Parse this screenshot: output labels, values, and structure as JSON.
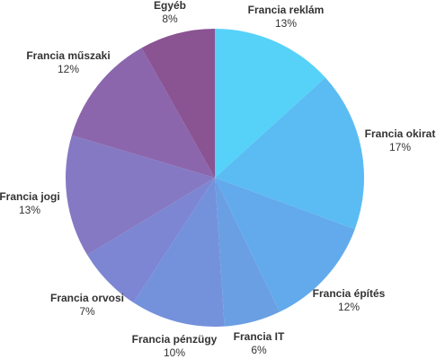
{
  "chart_data": {
    "type": "pie",
    "categories": [
      "Francia reklám",
      "Francia okirat",
      "Francia építés",
      "Francia IT",
      "Francia pénzügy",
      "Francia orvosi",
      "Francia jogi",
      "Francia műszaki",
      "Egyéb"
    ],
    "values": [
      13,
      17,
      12,
      6,
      10,
      7,
      13,
      12,
      8
    ],
    "value_labels": [
      "13%",
      "17%",
      "12%",
      "6%",
      "10%",
      "7%",
      "13%",
      "12%",
      "8%"
    ],
    "colors": [
      "#56d2f9",
      "#5bbcf3",
      "#62aaec",
      "#6a9fe4",
      "#7491dc",
      "#7c86d2",
      "#8579c3",
      "#8b66ad",
      "#8a5392"
    ]
  }
}
